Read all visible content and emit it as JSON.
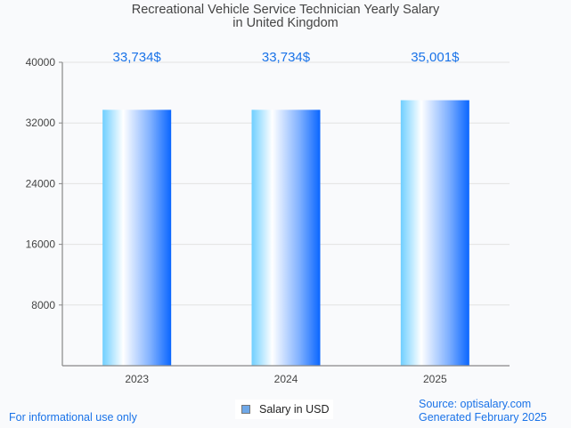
{
  "chart_data": {
    "type": "bar",
    "title": "Recreational Vehicle Service Technician Yearly Salary in United Kingdom",
    "title_lines": [
      "Recreational Vehicle Service Technician Yearly Salary",
      "in United Kingdom"
    ],
    "categories": [
      "2023",
      "2024",
      "2025"
    ],
    "series": [
      {
        "name": "Salary in USD",
        "values": [
          33734,
          33734,
          35001
        ]
      }
    ],
    "data_labels": [
      "33,734$",
      "33,734$",
      "35,001$"
    ],
    "xlabel": "",
    "ylabel": "",
    "ylim": [
      0,
      40000
    ],
    "yticks": [
      8000,
      16000,
      24000,
      32000,
      40000
    ],
    "ytick_labels": [
      "8000",
      "16000",
      "24000",
      "32000",
      "40000"
    ],
    "grid": true,
    "legend_position": "bottom-center",
    "colors": {
      "label": "#1a73e8",
      "bar_left": "#6fcfff",
      "bar_mid": "#ffffff",
      "bar_right": "#0a66ff"
    }
  },
  "footer": {
    "disclaimer": "For informational use only",
    "source": "Source: optisalary.com",
    "generated": "Generated February 2025"
  },
  "legend": {
    "label": "Salary in USD"
  }
}
